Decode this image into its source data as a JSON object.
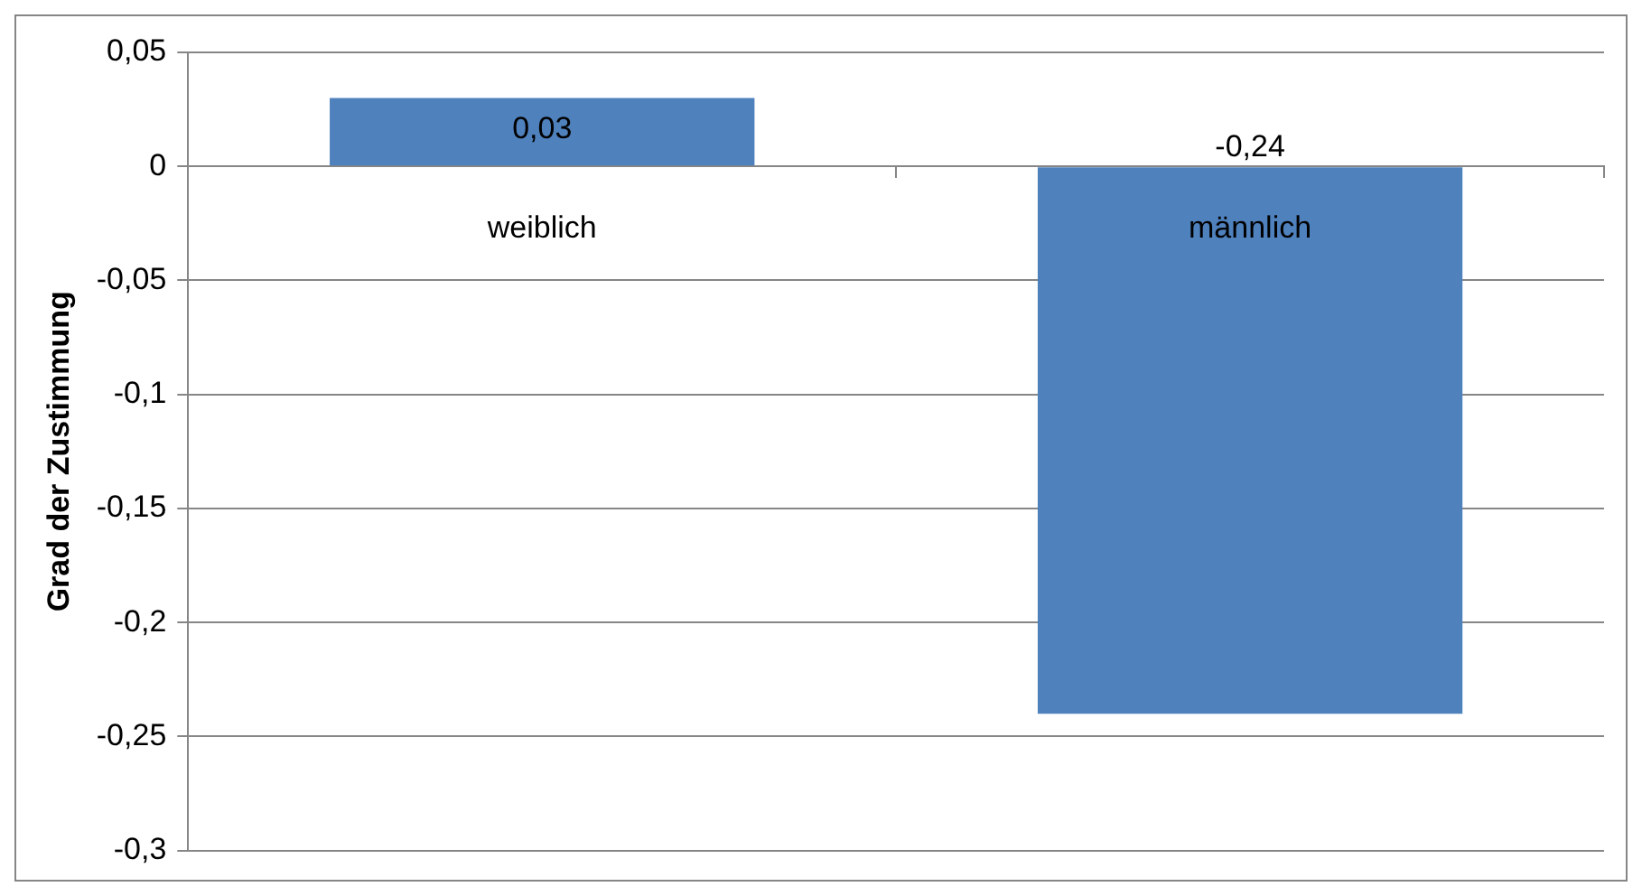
{
  "chart_data": {
    "type": "bar",
    "ylabel": "Grad der Zustimmung",
    "categories": [
      "weiblich",
      "männlich"
    ],
    "values": [
      0.03,
      -0.24
    ],
    "value_labels": [
      "0,03",
      "-0,24"
    ],
    "color": "#4f81bd",
    "ylim": [
      -0.3,
      0.05
    ],
    "yticks": [
      {
        "value": 0.05,
        "label": "0,05"
      },
      {
        "value": 0,
        "label": "0"
      },
      {
        "value": -0.05,
        "label": "-0,05"
      },
      {
        "value": -0.1,
        "label": "-0,1"
      },
      {
        "value": -0.15,
        "label": "-0,15"
      },
      {
        "value": -0.2,
        "label": "-0,2"
      },
      {
        "value": -0.25,
        "label": "-0,25"
      },
      {
        "value": -0.3,
        "label": "-0,3"
      }
    ],
    "grid": "y",
    "legend": false
  }
}
